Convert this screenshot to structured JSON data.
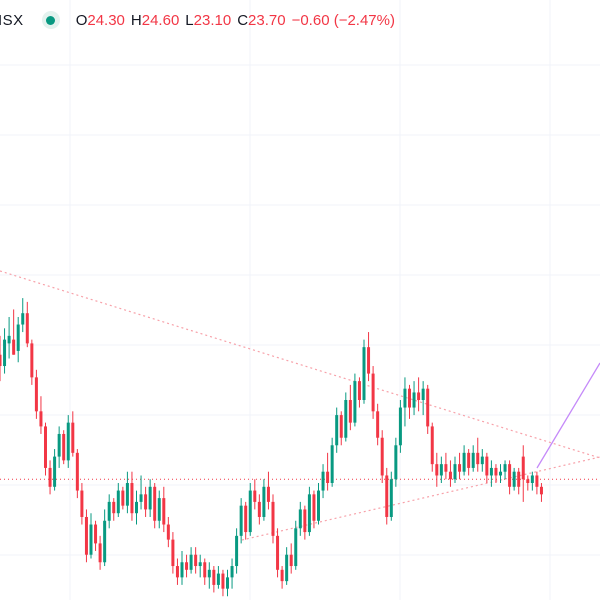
{
  "legend": {
    "symbol": "ISX",
    "open_label": "O",
    "open": "24.30",
    "high_label": "H",
    "high": "24.60",
    "low_label": "L",
    "low": "23.10",
    "close_label": "C",
    "close": "23.70",
    "change": "−0.60 (−2.47%)",
    "status_icon": "market-open-dot-icon"
  },
  "colors": {
    "up": "#089981",
    "down": "#f23645",
    "grid": "#f0f3fa",
    "trendline": "#f7a1a9",
    "projection": "#c58af9",
    "price_line": "#f23645"
  },
  "chart_data": {
    "type": "candlestick",
    "title": "",
    "xlabel": "",
    "ylabel": "",
    "ylim": [
      20.5,
      36.4
    ],
    "grid": true,
    "last_price_line": 23.7,
    "candles": [
      {
        "o": 27.0,
        "h": 27.5,
        "l": 26.3,
        "c": 26.7
      },
      {
        "o": 26.7,
        "h": 27.7,
        "l": 26.5,
        "c": 27.4
      },
      {
        "o": 27.3,
        "h": 28.0,
        "l": 26.9,
        "c": 27.5
      },
      {
        "o": 27.4,
        "h": 28.2,
        "l": 27.0,
        "c": 27.0
      },
      {
        "o": 27.1,
        "h": 28.0,
        "l": 26.8,
        "c": 27.8
      },
      {
        "o": 27.8,
        "h": 28.5,
        "l": 27.6,
        "c": 28.1
      },
      {
        "o": 28.1,
        "h": 28.4,
        "l": 27.2,
        "c": 27.3
      },
      {
        "o": 27.3,
        "h": 27.4,
        "l": 26.2,
        "c": 26.4
      },
      {
        "o": 26.4,
        "h": 26.6,
        "l": 25.3,
        "c": 25.5
      },
      {
        "o": 25.5,
        "h": 25.9,
        "l": 24.9,
        "c": 25.1
      },
      {
        "o": 25.1,
        "h": 25.2,
        "l": 23.8,
        "c": 24.0
      },
      {
        "o": 24.0,
        "h": 24.2,
        "l": 23.3,
        "c": 23.5
      },
      {
        "o": 23.5,
        "h": 24.5,
        "l": 23.4,
        "c": 24.3
      },
      {
        "o": 24.3,
        "h": 25.1,
        "l": 24.0,
        "c": 24.9
      },
      {
        "o": 24.9,
        "h": 25.0,
        "l": 24.1,
        "c": 24.2
      },
      {
        "o": 24.2,
        "h": 25.4,
        "l": 24.0,
        "c": 25.2
      },
      {
        "o": 25.2,
        "h": 25.5,
        "l": 24.3,
        "c": 24.4
      },
      {
        "o": 24.4,
        "h": 24.5,
        "l": 23.2,
        "c": 23.4
      },
      {
        "o": 23.4,
        "h": 23.6,
        "l": 22.5,
        "c": 22.7
      },
      {
        "o": 22.7,
        "h": 22.9,
        "l": 21.5,
        "c": 21.7
      },
      {
        "o": 21.7,
        "h": 22.8,
        "l": 21.6,
        "c": 22.5
      },
      {
        "o": 22.5,
        "h": 22.6,
        "l": 21.8,
        "c": 22.0
      },
      {
        "o": 22.0,
        "h": 22.2,
        "l": 21.3,
        "c": 21.5
      },
      {
        "o": 21.5,
        "h": 22.9,
        "l": 21.4,
        "c": 22.6
      },
      {
        "o": 22.6,
        "h": 23.3,
        "l": 22.4,
        "c": 23.1
      },
      {
        "o": 23.1,
        "h": 23.2,
        "l": 22.6,
        "c": 22.8
      },
      {
        "o": 22.8,
        "h": 23.6,
        "l": 22.7,
        "c": 23.4
      },
      {
        "o": 23.4,
        "h": 23.5,
        "l": 22.9,
        "c": 23.0
      },
      {
        "o": 23.0,
        "h": 23.9,
        "l": 22.8,
        "c": 23.6
      },
      {
        "o": 23.6,
        "h": 23.9,
        "l": 22.6,
        "c": 22.8
      },
      {
        "o": 22.8,
        "h": 23.4,
        "l": 22.5,
        "c": 23.1
      },
      {
        "o": 23.1,
        "h": 23.8,
        "l": 22.9,
        "c": 23.3
      },
      {
        "o": 23.3,
        "h": 23.5,
        "l": 22.7,
        "c": 22.9
      },
      {
        "o": 22.9,
        "h": 23.7,
        "l": 22.7,
        "c": 23.5
      },
      {
        "o": 23.5,
        "h": 23.6,
        "l": 22.4,
        "c": 22.6
      },
      {
        "o": 22.6,
        "h": 23.4,
        "l": 22.4,
        "c": 23.2
      },
      {
        "o": 23.2,
        "h": 23.5,
        "l": 22.3,
        "c": 22.5
      },
      {
        "o": 22.5,
        "h": 22.7,
        "l": 21.9,
        "c": 22.1
      },
      {
        "o": 22.1,
        "h": 22.3,
        "l": 21.2,
        "c": 21.4
      },
      {
        "o": 21.4,
        "h": 21.6,
        "l": 20.9,
        "c": 21.1
      },
      {
        "o": 21.1,
        "h": 21.8,
        "l": 20.9,
        "c": 21.5
      },
      {
        "o": 21.5,
        "h": 21.7,
        "l": 21.1,
        "c": 21.3
      },
      {
        "o": 21.3,
        "h": 21.9,
        "l": 21.2,
        "c": 21.7
      },
      {
        "o": 21.7,
        "h": 21.9,
        "l": 21.2,
        "c": 21.4
      },
      {
        "o": 21.4,
        "h": 21.7,
        "l": 21.1,
        "c": 21.5
      },
      {
        "o": 21.5,
        "h": 21.6,
        "l": 20.9,
        "c": 21.1
      },
      {
        "o": 21.1,
        "h": 21.5,
        "l": 20.8,
        "c": 21.3
      },
      {
        "o": 21.3,
        "h": 21.4,
        "l": 20.7,
        "c": 20.9
      },
      {
        "o": 20.9,
        "h": 21.4,
        "l": 20.8,
        "c": 21.2
      },
      {
        "o": 21.2,
        "h": 21.3,
        "l": 20.6,
        "c": 20.8
      },
      {
        "o": 20.8,
        "h": 21.3,
        "l": 20.6,
        "c": 21.1
      },
      {
        "o": 21.1,
        "h": 21.6,
        "l": 20.8,
        "c": 21.4
      },
      {
        "o": 21.4,
        "h": 22.4,
        "l": 21.2,
        "c": 22.2
      },
      {
        "o": 22.2,
        "h": 23.2,
        "l": 22.0,
        "c": 23.0
      },
      {
        "o": 23.0,
        "h": 23.1,
        "l": 22.1,
        "c": 22.3
      },
      {
        "o": 22.3,
        "h": 23.6,
        "l": 22.2,
        "c": 23.4
      },
      {
        "o": 23.4,
        "h": 23.7,
        "l": 22.9,
        "c": 23.1
      },
      {
        "o": 23.1,
        "h": 23.3,
        "l": 22.5,
        "c": 22.7
      },
      {
        "o": 22.7,
        "h": 23.7,
        "l": 22.6,
        "c": 23.5
      },
      {
        "o": 23.5,
        "h": 23.9,
        "l": 22.9,
        "c": 23.1
      },
      {
        "o": 23.1,
        "h": 23.3,
        "l": 22.0,
        "c": 22.2
      },
      {
        "o": 22.2,
        "h": 22.4,
        "l": 21.1,
        "c": 21.3
      },
      {
        "o": 21.3,
        "h": 21.4,
        "l": 20.8,
        "c": 21.0
      },
      {
        "o": 21.0,
        "h": 21.9,
        "l": 20.9,
        "c": 21.7
      },
      {
        "o": 21.7,
        "h": 22.0,
        "l": 21.2,
        "c": 21.4
      },
      {
        "o": 21.4,
        "h": 22.6,
        "l": 21.3,
        "c": 22.4
      },
      {
        "o": 22.4,
        "h": 23.1,
        "l": 22.2,
        "c": 22.9
      },
      {
        "o": 22.9,
        "h": 23.0,
        "l": 22.1,
        "c": 22.3
      },
      {
        "o": 22.3,
        "h": 23.5,
        "l": 22.2,
        "c": 23.3
      },
      {
        "o": 23.3,
        "h": 23.4,
        "l": 22.4,
        "c": 22.6
      },
      {
        "o": 22.6,
        "h": 23.6,
        "l": 22.5,
        "c": 23.4
      },
      {
        "o": 23.4,
        "h": 24.1,
        "l": 23.2,
        "c": 23.9
      },
      {
        "o": 23.9,
        "h": 24.4,
        "l": 23.4,
        "c": 23.6
      },
      {
        "o": 23.6,
        "h": 24.8,
        "l": 23.5,
        "c": 24.6
      },
      {
        "o": 24.6,
        "h": 25.6,
        "l": 24.4,
        "c": 25.4
      },
      {
        "o": 25.4,
        "h": 25.5,
        "l": 24.6,
        "c": 24.8
      },
      {
        "o": 24.8,
        "h": 26.0,
        "l": 24.7,
        "c": 25.8
      },
      {
        "o": 25.8,
        "h": 26.2,
        "l": 25.0,
        "c": 25.2
      },
      {
        "o": 25.2,
        "h": 26.5,
        "l": 25.1,
        "c": 26.3
      },
      {
        "o": 26.3,
        "h": 26.4,
        "l": 25.6,
        "c": 25.8
      },
      {
        "o": 25.8,
        "h": 27.4,
        "l": 25.7,
        "c": 27.2
      },
      {
        "o": 27.2,
        "h": 27.6,
        "l": 26.3,
        "c": 26.5
      },
      {
        "o": 26.5,
        "h": 26.7,
        "l": 25.3,
        "c": 25.5
      },
      {
        "o": 25.5,
        "h": 25.7,
        "l": 24.6,
        "c": 24.8
      },
      {
        "o": 24.8,
        "h": 25.0,
        "l": 23.6,
        "c": 23.8
      },
      {
        "o": 23.8,
        "h": 24.0,
        "l": 22.5,
        "c": 22.7
      },
      {
        "o": 22.7,
        "h": 23.9,
        "l": 22.6,
        "c": 23.7
      },
      {
        "o": 23.7,
        "h": 24.8,
        "l": 23.5,
        "c": 24.6
      },
      {
        "o": 24.6,
        "h": 25.8,
        "l": 24.4,
        "c": 25.6
      },
      {
        "o": 25.6,
        "h": 26.4,
        "l": 25.1,
        "c": 26.1
      },
      {
        "o": 26.1,
        "h": 26.2,
        "l": 25.3,
        "c": 25.6
      },
      {
        "o": 25.6,
        "h": 26.3,
        "l": 25.4,
        "c": 26.0
      },
      {
        "o": 26.0,
        "h": 26.4,
        "l": 25.5,
        "c": 25.8
      },
      {
        "o": 25.8,
        "h": 26.3,
        "l": 25.4,
        "c": 26.1
      },
      {
        "o": 26.1,
        "h": 26.2,
        "l": 24.9,
        "c": 25.1
      },
      {
        "o": 25.1,
        "h": 25.2,
        "l": 23.9,
        "c": 24.1
      },
      {
        "o": 24.1,
        "h": 24.4,
        "l": 23.5,
        "c": 23.8
      },
      {
        "o": 23.8,
        "h": 24.3,
        "l": 23.6,
        "c": 24.1
      },
      {
        "o": 24.1,
        "h": 24.4,
        "l": 23.7,
        "c": 23.9
      },
      {
        "o": 23.9,
        "h": 24.2,
        "l": 23.5,
        "c": 23.7
      },
      {
        "o": 23.7,
        "h": 24.3,
        "l": 23.6,
        "c": 24.1
      },
      {
        "o": 24.1,
        "h": 24.4,
        "l": 23.7,
        "c": 23.9
      },
      {
        "o": 23.9,
        "h": 24.6,
        "l": 23.8,
        "c": 24.4
      },
      {
        "o": 24.4,
        "h": 24.5,
        "l": 23.8,
        "c": 24.0
      },
      {
        "o": 24.0,
        "h": 24.6,
        "l": 23.9,
        "c": 24.4
      },
      {
        "o": 24.4,
        "h": 24.8,
        "l": 23.9,
        "c": 24.1
      },
      {
        "o": 24.1,
        "h": 24.5,
        "l": 23.9,
        "c": 24.3
      },
      {
        "o": 24.3,
        "h": 24.4,
        "l": 23.6,
        "c": 23.8
      },
      {
        "o": 23.8,
        "h": 24.2,
        "l": 23.5,
        "c": 24.0
      },
      {
        "o": 24.0,
        "h": 24.1,
        "l": 23.6,
        "c": 23.8
      },
      {
        "o": 23.8,
        "h": 24.1,
        "l": 23.6,
        "c": 23.9
      },
      {
        "o": 23.9,
        "h": 24.2,
        "l": 23.7,
        "c": 24.1
      },
      {
        "o": 24.1,
        "h": 24.2,
        "l": 23.3,
        "c": 23.5
      },
      {
        "o": 23.5,
        "h": 24.0,
        "l": 23.4,
        "c": 23.9
      },
      {
        "o": 23.9,
        "h": 24.0,
        "l": 23.3,
        "c": 23.5
      },
      {
        "o": 24.3,
        "h": 24.6,
        "l": 23.1,
        "c": 23.7
      },
      {
        "o": 23.7,
        "h": 23.8,
        "l": 23.4,
        "c": 23.6
      },
      {
        "o": 23.6,
        "h": 23.9,
        "l": 23.4,
        "c": 23.8
      },
      {
        "o": 23.8,
        "h": 23.9,
        "l": 23.3,
        "c": 23.5
      },
      {
        "o": 23.5,
        "h": 23.6,
        "l": 23.1,
        "c": 23.3
      }
    ]
  }
}
